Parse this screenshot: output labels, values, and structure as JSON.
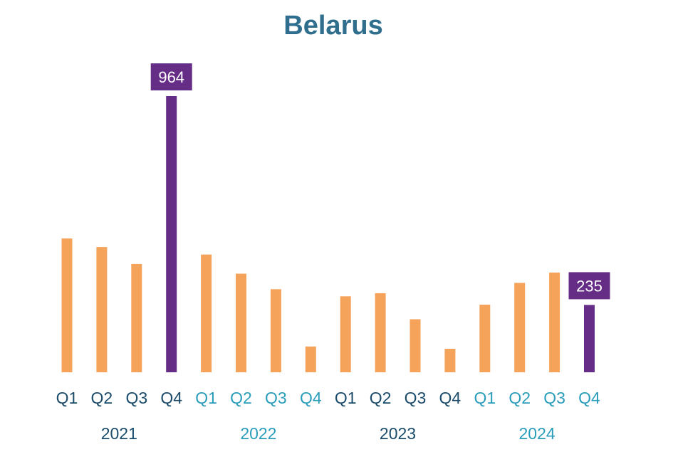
{
  "chart_data": {
    "type": "bar",
    "title": "Belarus",
    "categories": [
      "Q1",
      "Q2",
      "Q3",
      "Q4",
      "Q1",
      "Q2",
      "Q3",
      "Q4",
      "Q1",
      "Q2",
      "Q3",
      "Q4",
      "Q1",
      "Q2",
      "Q3",
      "Q4"
    ],
    "values": [
      467,
      437,
      378,
      964,
      411,
      344,
      290,
      90,
      265,
      276,
      185,
      82,
      236,
      312,
      348,
      235
    ],
    "highlighted": [
      3,
      15
    ],
    "data_labels": {
      "3": "964",
      "15": "235"
    },
    "year_groups": [
      {
        "label": "2021",
        "start": 0,
        "end": 3
      },
      {
        "label": "2022",
        "start": 4,
        "end": 7
      },
      {
        "label": "2023",
        "start": 8,
        "end": 11
      },
      {
        "label": "2024",
        "start": 12,
        "end": 15
      }
    ],
    "ylim": [
      0,
      964
    ],
    "grid": false,
    "legend": "none",
    "xlabel": "",
    "ylabel": ""
  },
  "colors": {
    "bar": "#F5A35A",
    "highlight": "#662D86",
    "title": "#2F6E8C",
    "label_dark": "#1A4B6B",
    "label_light": "#2A9DBB",
    "data_label_text": "#FFFFFF"
  }
}
